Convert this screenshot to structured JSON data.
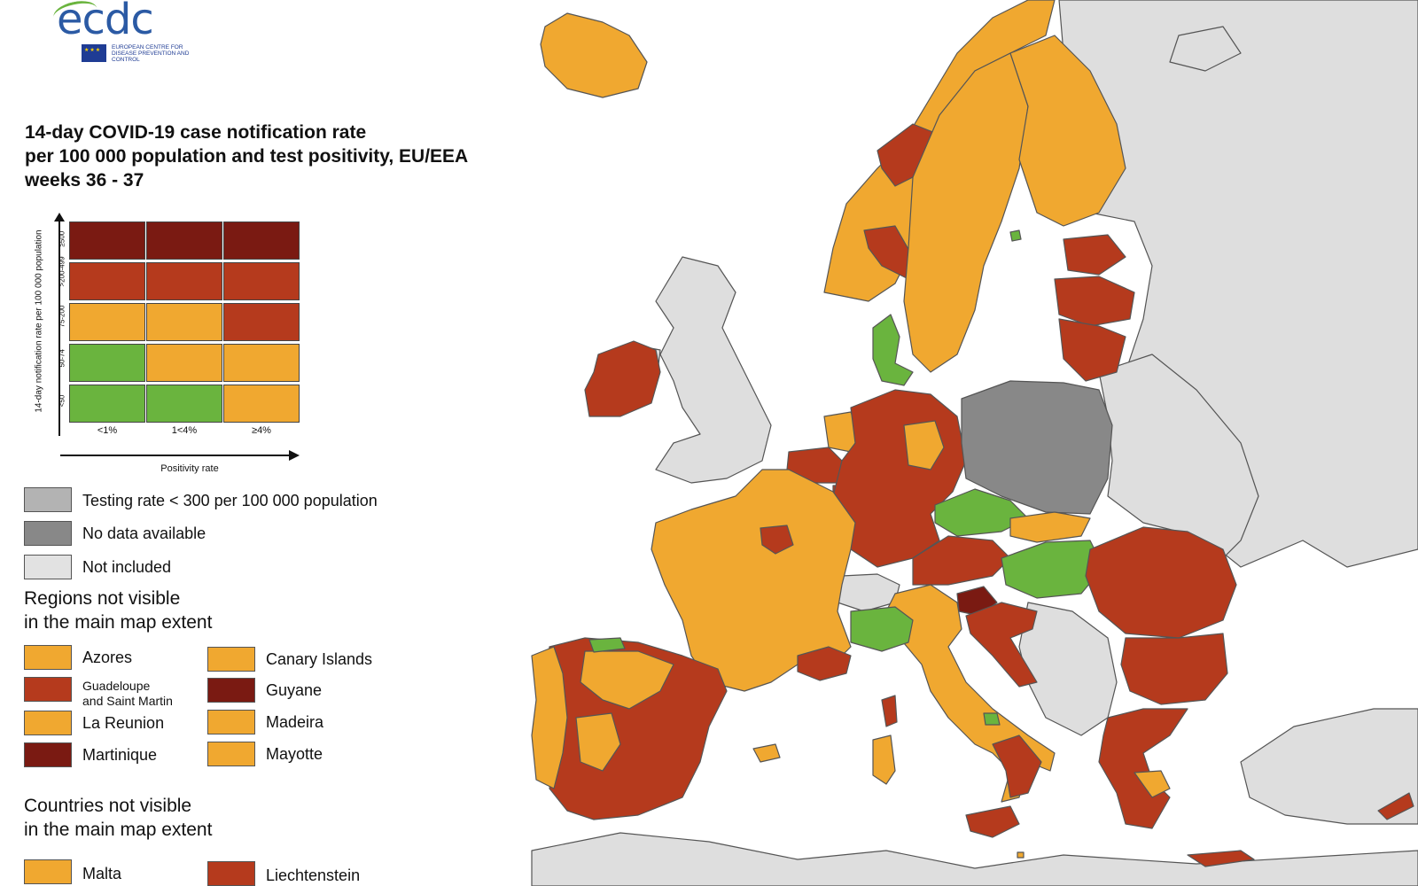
{
  "logo": {
    "text": "ecdc",
    "subtitle": "EUROPEAN CENTRE FOR DISEASE PREVENTION AND CONTROL"
  },
  "title": {
    "line1": "14-day COVID-19 case notification rate",
    "line2": "per 100 000 population and test positivity, EU/EEA",
    "line3": "weeks 36 - 37"
  },
  "matrix": {
    "ylabel": "14-day notification rate per 100 000 population",
    "xlabel": "Positivity rate",
    "rows": [
      "≥500",
      ">200-499",
      "75-200",
      "50-74",
      "<50"
    ],
    "cols": [
      "<1%",
      "1<4%",
      "≥4%"
    ],
    "colors": [
      [
        "#7a1a12",
        "#7a1a12",
        "#7a1a12"
      ],
      [
        "#b53a1d",
        "#b53a1d",
        "#b53a1d"
      ],
      [
        "#f0a830",
        "#f0a830",
        "#b53a1d"
      ],
      [
        "#6ab43e",
        "#f0a830",
        "#f0a830"
      ],
      [
        "#6ab43e",
        "#6ab43e",
        "#f0a830"
      ]
    ]
  },
  "legend": {
    "testing": "Testing rate < 300 per 100 000 population",
    "nodata": "No data available",
    "notincluded": "Not included",
    "colors": {
      "testing": "#b3b3b3",
      "nodata": "#888888",
      "notincluded": "#e2e2e2"
    }
  },
  "regions_not_visible": {
    "heading_line1": "Regions not visible",
    "heading_line2": "in the main map extent",
    "items": [
      {
        "label": "Azores",
        "color": "#f0a830"
      },
      {
        "label": "Canary Islands",
        "color": "#f0a830"
      },
      {
        "label": "Guadeloupe and Saint Martin",
        "line1": "Guadeloupe",
        "line2": "and Saint Martin",
        "color": "#b53a1d"
      },
      {
        "label": "Guyane",
        "color": "#7a1a12"
      },
      {
        "label": "La Reunion",
        "color": "#f0a830"
      },
      {
        "label": "Madeira",
        "color": "#f0a830"
      },
      {
        "label": "Martinique",
        "color": "#7a1a12"
      },
      {
        "label": "Mayotte",
        "color": "#f0a830"
      }
    ]
  },
  "countries_not_visible": {
    "heading_line1": "Countries not visible",
    "heading_line2": "in the main map extent",
    "items": [
      {
        "label": "Malta",
        "color": "#f0a830"
      },
      {
        "label": "Liechtenstein",
        "color": "#b53a1d"
      }
    ]
  },
  "map_colors": {
    "orange": "#f0a830",
    "red": "#b53a1d",
    "darkred": "#7a1a12",
    "green": "#6ab43e",
    "grey": "#888888",
    "notincluded": "#dedede",
    "border": "#555555"
  }
}
